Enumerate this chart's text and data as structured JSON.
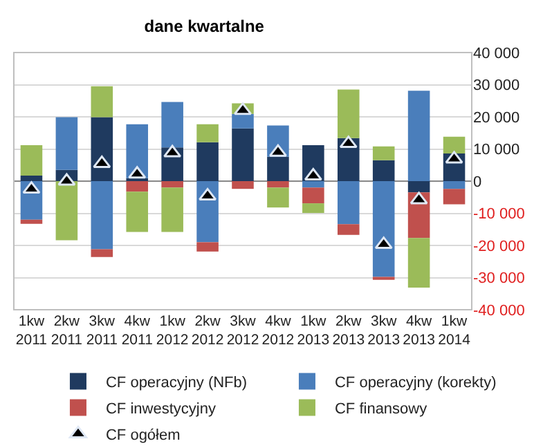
{
  "chart_data": {
    "type": "bar",
    "title": "dane kwartalne",
    "stacked": true,
    "categories": [
      "1kw 2011",
      "2kw 2011",
      "3kw 2011",
      "4kw 2011",
      "1kw 2012",
      "2kw 2012",
      "3kw 2012",
      "4kw 2012",
      "1kw 2013",
      "2kw 2013",
      "3kw 2013",
      "4kw 2013",
      "1kw 2014"
    ],
    "series": [
      {
        "name": "CF operacyjny (NFb)",
        "color": "#1f3a5f",
        "values": [
          1700,
          3500,
          19900,
          900,
          10500,
          12100,
          16400,
          7600,
          11200,
          13400,
          6500,
          -3500,
          8600
        ]
      },
      {
        "name": "CF operacyjny (korekty)",
        "color": "#4a7ebb",
        "values": [
          -12000,
          16400,
          -21200,
          16800,
          14100,
          -19000,
          4500,
          9700,
          -2000,
          -13400,
          -29800,
          28100,
          -2400
        ]
      },
      {
        "name": "CF inwestycyjny",
        "color": "#c0504d",
        "values": [
          -1300,
          null,
          -2400,
          -3300,
          -2000,
          -2900,
          -2400,
          -2000,
          -4900,
          -3300,
          -900,
          -14200,
          -4800
        ]
      },
      {
        "name": "CF finansowy",
        "color": "#9bbb59",
        "values": [
          9500,
          -18400,
          9600,
          -12500,
          -13800,
          5600,
          3300,
          -6200,
          -3000,
          15100,
          4300,
          -15400,
          5200
        ]
      },
      {
        "name": "CF ogółem",
        "type": "scatter",
        "marker": "triangle",
        "color": "#000000",
        "values": [
          -2500,
          0,
          5500,
          2200,
          8800,
          -4600,
          22000,
          9000,
          1600,
          11700,
          -19700,
          -5800,
          6900
        ]
      }
    ],
    "ylim": [
      -40000,
      40000
    ],
    "yticks": [
      {
        "value": 40000,
        "label": "40 000"
      },
      {
        "value": 30000,
        "label": "30 000"
      },
      {
        "value": 20000,
        "label": "20 000"
      },
      {
        "value": 10000,
        "label": "10 000"
      },
      0,
      {
        "value": -10000,
        "label": "-10 000"
      },
      {
        "value": -20000,
        "label": "-20 000"
      },
      {
        "value": -30000,
        "label": "-30 000"
      },
      {
        "value": -40000,
        "label": "-40 000"
      }
    ],
    "grid": "y",
    "legend": "bottom"
  }
}
